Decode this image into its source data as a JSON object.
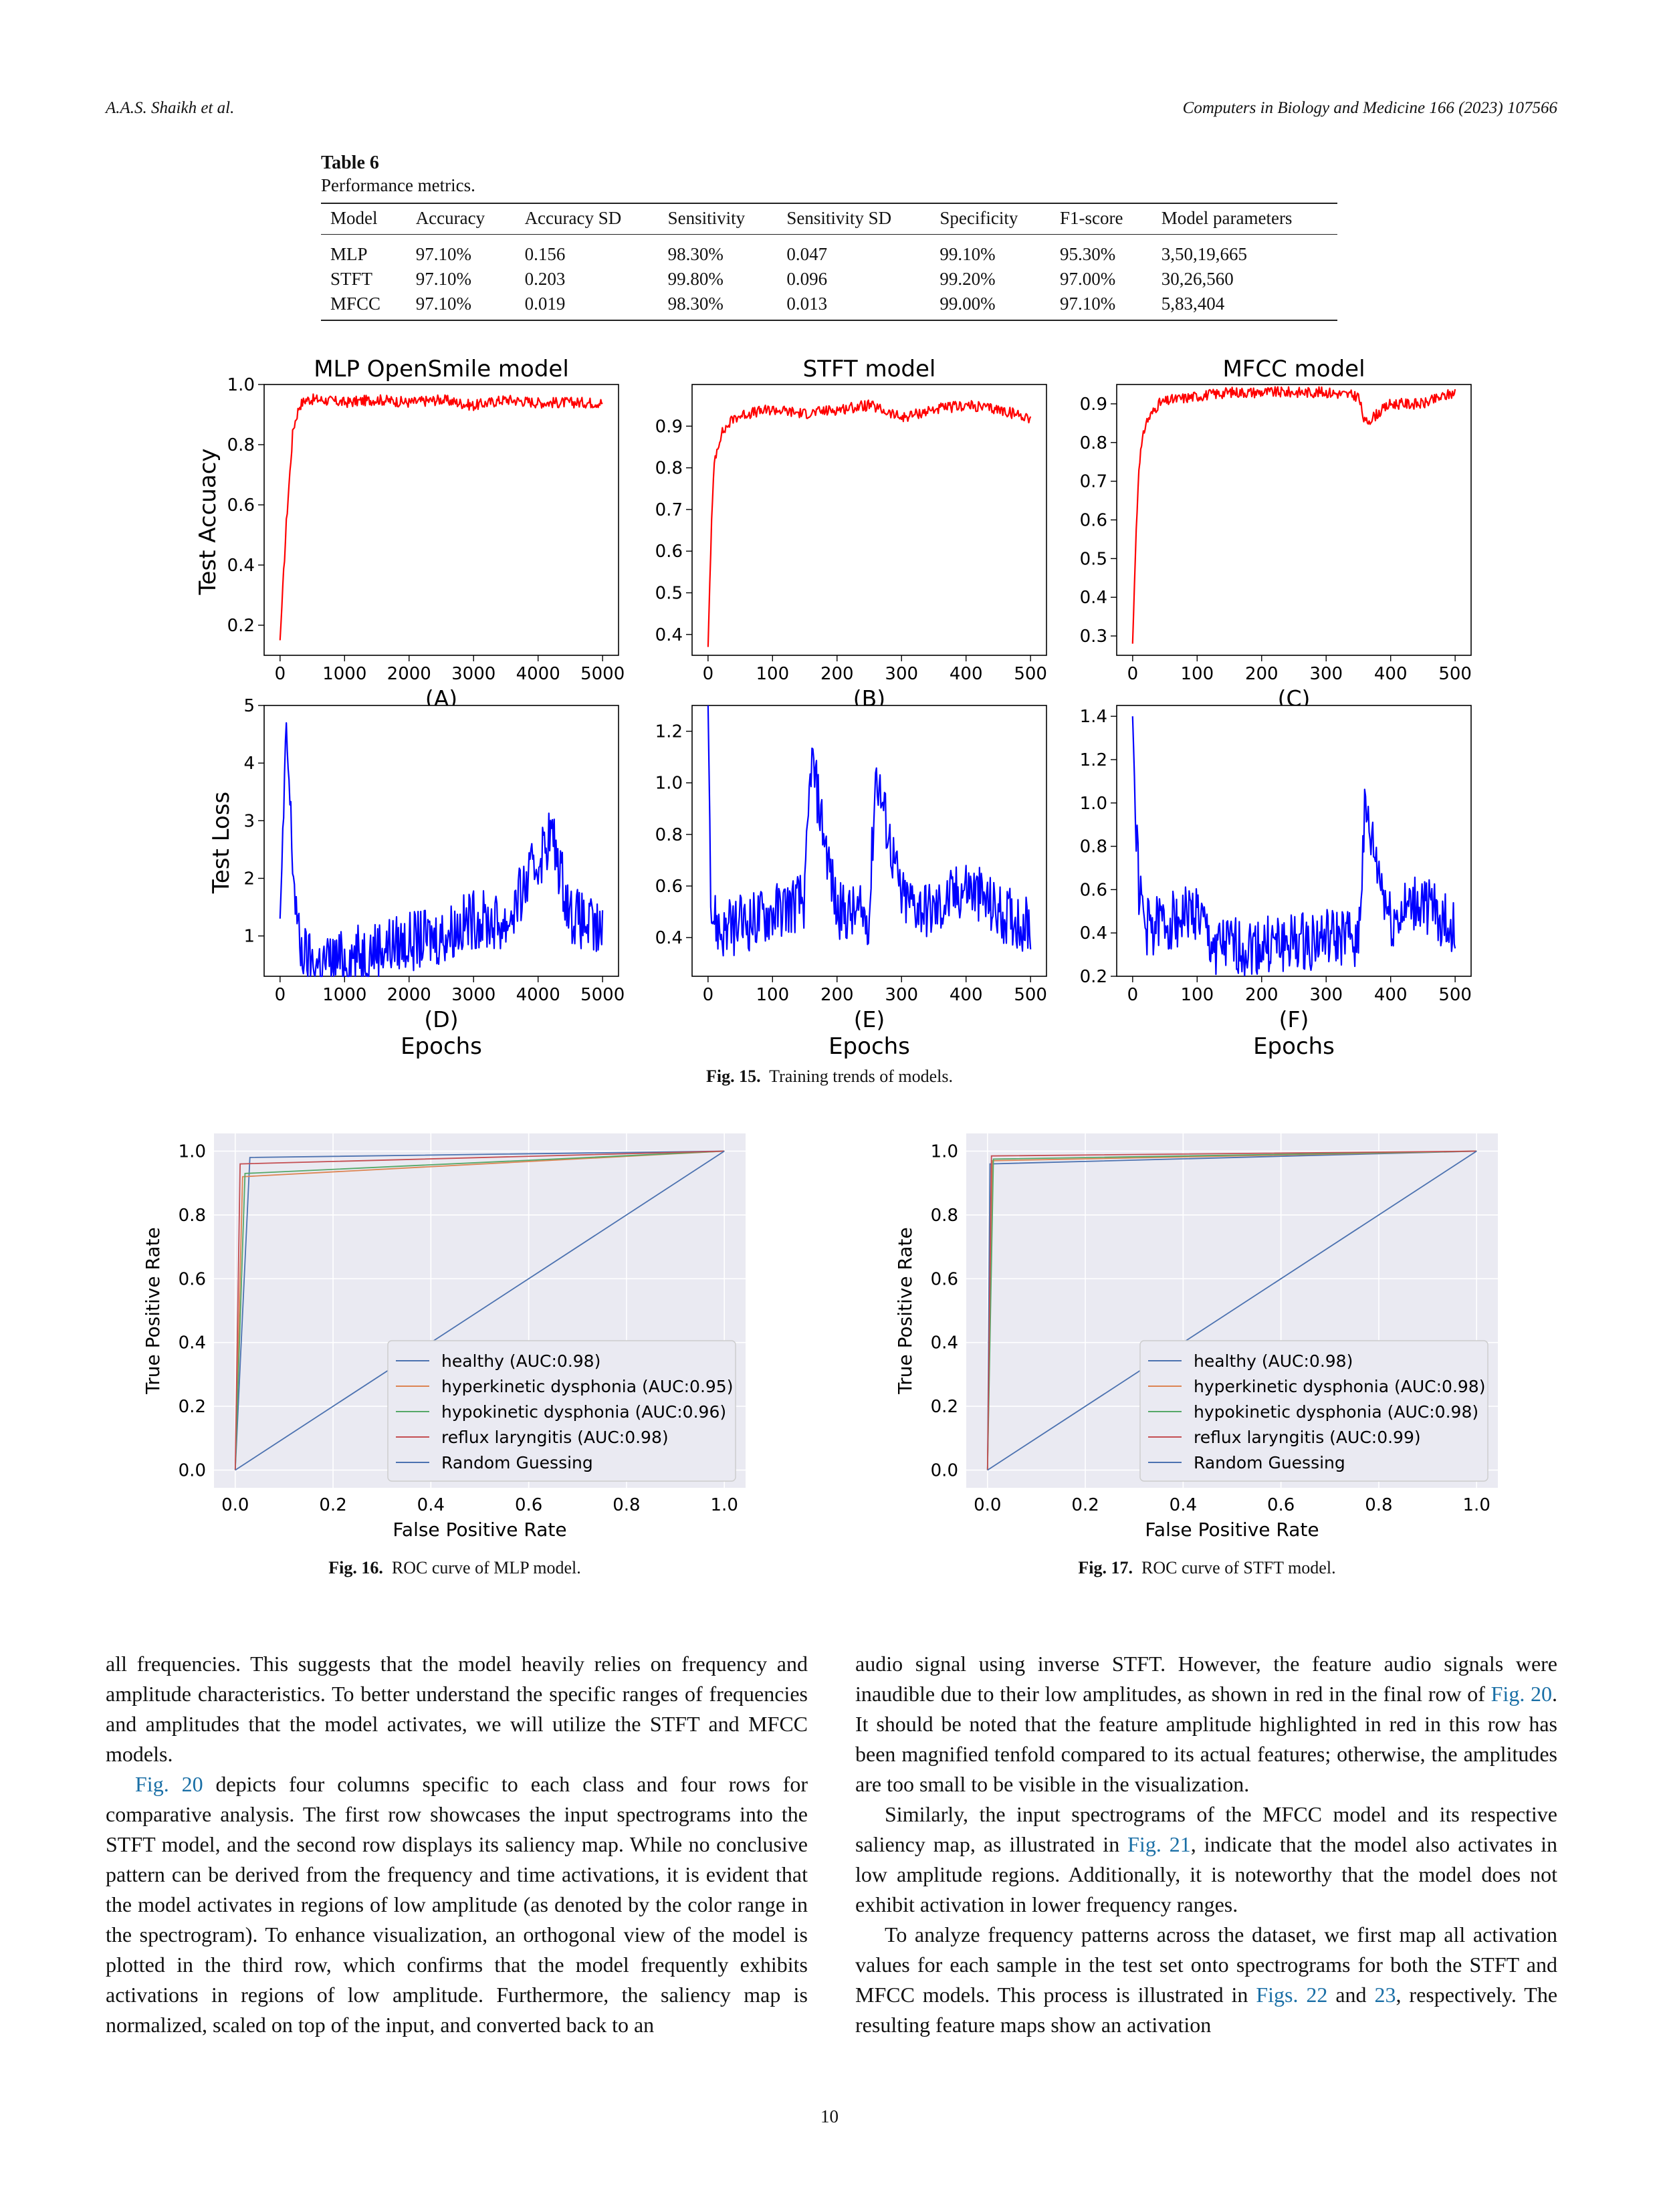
{
  "header": {
    "authors": "A.A.S. Shaikh et al.",
    "journal": "Computers in Biology and Medicine 166 (2023) 107566"
  },
  "table6": {
    "label": "Table 6",
    "caption": "Performance metrics.",
    "columns": [
      "Model",
      "Accuracy",
      "Accuracy SD",
      "Sensitivity",
      "Sensitivity SD",
      "Specificity",
      "F1-score",
      "Model parameters"
    ],
    "rows": [
      [
        "MLP",
        "97.10%",
        "0.156",
        "98.30%",
        "0.047",
        "99.10%",
        "95.30%",
        "3,50,19,665"
      ],
      [
        "STFT",
        "97.10%",
        "0.203",
        "99.80%",
        "0.096",
        "99.20%",
        "97.00%",
        "30,26,560"
      ],
      [
        "MFCC",
        "97.10%",
        "0.019",
        "98.30%",
        "0.013",
        "99.00%",
        "97.10%",
        "5,83,404"
      ]
    ]
  },
  "fig15": {
    "caption_label": "Fig. 15.",
    "caption_text": "Training trends of models.",
    "titles": [
      "MLP OpenSmile model",
      "STFT model",
      "MFCC model"
    ],
    "ylabel_top": "Test Accuacy",
    "ylabel_bottom": "Test Loss",
    "xlabel": "Epochs",
    "panel_letters": [
      "(A)",
      "(B)",
      "(C)",
      "(D)",
      "(E)",
      "(F)"
    ]
  },
  "fig16": {
    "caption_label": "Fig. 16.",
    "caption_text": "ROC curve of MLP model."
  },
  "fig17": {
    "caption_label": "Fig. 17.",
    "caption_text": "ROC curve of STFT model."
  },
  "chart_data": [
    {
      "type": "line",
      "panel": "(A)",
      "title": "MLP OpenSmile model",
      "ylabel": "Test Accuacy",
      "xlim": [
        0,
        5000
      ],
      "ylim": [
        0.1,
        1.0
      ],
      "xticks": [
        0,
        1000,
        2000,
        3000,
        4000,
        5000
      ],
      "yticks": [
        0.2,
        0.4,
        0.6,
        0.8,
        1.0
      ],
      "color": "#ff0000",
      "x": [
        0,
        50,
        100,
        200,
        300,
        400,
        600,
        1000,
        1500,
        2000,
        2500,
        3000,
        3500,
        4000,
        4500,
        5000
      ],
      "y": [
        0.15,
        0.35,
        0.55,
        0.85,
        0.93,
        0.95,
        0.95,
        0.94,
        0.95,
        0.94,
        0.95,
        0.93,
        0.95,
        0.94,
        0.94,
        0.94
      ]
    },
    {
      "type": "line",
      "panel": "(B)",
      "title": "STFT model",
      "xlim": [
        0,
        500
      ],
      "ylim": [
        0.35,
        1.0
      ],
      "xticks": [
        0,
        100,
        200,
        300,
        400,
        500
      ],
      "yticks": [
        0.4,
        0.5,
        0.6,
        0.7,
        0.8,
        0.9
      ],
      "color": "#ff0000",
      "x": [
        0,
        5,
        10,
        20,
        40,
        60,
        100,
        150,
        200,
        250,
        300,
        350,
        400,
        450,
        500
      ],
      "y": [
        0.37,
        0.65,
        0.82,
        0.88,
        0.92,
        0.93,
        0.94,
        0.93,
        0.94,
        0.95,
        0.92,
        0.94,
        0.95,
        0.94,
        0.92
      ]
    },
    {
      "type": "line",
      "panel": "(C)",
      "title": "MFCC model",
      "xlim": [
        0,
        500
      ],
      "ylim": [
        0.25,
        0.95
      ],
      "xticks": [
        0,
        100,
        200,
        300,
        400,
        500
      ],
      "yticks": [
        0.3,
        0.4,
        0.5,
        0.6,
        0.7,
        0.8,
        0.9
      ],
      "color": "#ff0000",
      "x": [
        0,
        5,
        10,
        20,
        40,
        60,
        100,
        150,
        200,
        250,
        300,
        350,
        360,
        400,
        450,
        500
      ],
      "y": [
        0.28,
        0.55,
        0.75,
        0.85,
        0.9,
        0.91,
        0.92,
        0.93,
        0.93,
        0.93,
        0.93,
        0.92,
        0.85,
        0.9,
        0.9,
        0.93
      ]
    },
    {
      "type": "line",
      "panel": "(D)",
      "ylabel": "Test Loss",
      "xlabel": "Epochs",
      "xlim": [
        0,
        5000
      ],
      "ylim": [
        0.3,
        5.0
      ],
      "xticks": [
        0,
        1000,
        2000,
        3000,
        4000,
        5000
      ],
      "yticks": [
        1,
        2,
        3,
        4,
        5
      ],
      "color": "#0000ff",
      "x": [
        0,
        100,
        200,
        300,
        500,
        1000,
        1500,
        2000,
        2500,
        3000,
        3500,
        4000,
        4200,
        4500,
        5000
      ],
      "y": [
        1.3,
        4.5,
        2.2,
        0.8,
        0.5,
        0.6,
        0.8,
        0.9,
        1.0,
        1.3,
        1.2,
        2.3,
        2.8,
        1.4,
        1.0
      ]
    },
    {
      "type": "line",
      "panel": "(E)",
      "xlabel": "Epochs",
      "xlim": [
        0,
        500
      ],
      "ylim": [
        0.25,
        1.3
      ],
      "xticks": [
        0,
        100,
        200,
        300,
        400,
        500
      ],
      "yticks": [
        0.4,
        0.6,
        0.8,
        1.0,
        1.2
      ],
      "color": "#0000ff",
      "x": [
        0,
        5,
        20,
        50,
        100,
        150,
        160,
        200,
        250,
        260,
        300,
        350,
        400,
        450,
        500
      ],
      "y": [
        1.3,
        0.5,
        0.42,
        0.45,
        0.5,
        0.55,
        1.1,
        0.5,
        0.48,
        1.05,
        0.55,
        0.5,
        0.6,
        0.5,
        0.45
      ]
    },
    {
      "type": "line",
      "panel": "(F)",
      "xlabel": "Epochs",
      "xlim": [
        0,
        500
      ],
      "ylim": [
        0.2,
        1.45
      ],
      "xticks": [
        0,
        100,
        200,
        300,
        400,
        500
      ],
      "yticks": [
        0.2,
        0.4,
        0.6,
        0.8,
        1.0,
        1.2,
        1.4
      ],
      "color": "#0000ff",
      "x": [
        0,
        5,
        10,
        20,
        50,
        100,
        120,
        150,
        200,
        250,
        300,
        350,
        360,
        400,
        450,
        500
      ],
      "y": [
        1.4,
        0.9,
        0.6,
        0.42,
        0.45,
        0.5,
        0.35,
        0.33,
        0.34,
        0.35,
        0.37,
        0.38,
        0.95,
        0.45,
        0.55,
        0.4
      ]
    },
    {
      "type": "line",
      "chart": "ROC curve of MLP model",
      "xlabel": "False Positive Rate",
      "ylabel": "True Positive Rate",
      "xlim": [
        0,
        1
      ],
      "ylim": [
        0,
        1
      ],
      "xticks": [
        0.0,
        0.2,
        0.4,
        0.6,
        0.8,
        1.0
      ],
      "yticks": [
        0.0,
        0.2,
        0.4,
        0.6,
        0.8,
        1.0
      ],
      "legend": "lower right",
      "series": [
        {
          "name": "healthy (AUC:0.98)",
          "color": "#4c72b0",
          "x": [
            0,
            0.03,
            1.0
          ],
          "y": [
            0,
            0.98,
            1.0
          ]
        },
        {
          "name": "hyperkinetic dysphonia (AUC:0.95)",
          "color": "#dd8452",
          "x": [
            0,
            0.015,
            1.0
          ],
          "y": [
            0,
            0.92,
            1.0
          ]
        },
        {
          "name": "hypokinetic dysphonia (AUC:0.96)",
          "color": "#55a868",
          "x": [
            0,
            0.02,
            1.0
          ],
          "y": [
            0,
            0.93,
            1.0
          ]
        },
        {
          "name": "reflux laryngitis (AUC:0.98)",
          "color": "#c44e52",
          "x": [
            0,
            0.01,
            1.0
          ],
          "y": [
            0,
            0.96,
            1.0
          ]
        },
        {
          "name": "Random Guessing",
          "color": "#4c72b0",
          "x": [
            0,
            1
          ],
          "y": [
            0,
            1
          ]
        }
      ]
    },
    {
      "type": "line",
      "chart": "ROC curve of STFT model",
      "xlabel": "False Positive Rate",
      "ylabel": "True Positive Rate",
      "xlim": [
        0,
        1
      ],
      "ylim": [
        0,
        1
      ],
      "xticks": [
        0.0,
        0.2,
        0.4,
        0.6,
        0.8,
        1.0
      ],
      "yticks": [
        0.0,
        0.2,
        0.4,
        0.6,
        0.8,
        1.0
      ],
      "legend": "lower right",
      "series": [
        {
          "name": "healthy (AUC:0.98)",
          "color": "#4c72b0",
          "x": [
            0,
            0.005,
            1.0
          ],
          "y": [
            0,
            0.96,
            1.0
          ]
        },
        {
          "name": "hyperkinetic dysphonia (AUC:0.98)",
          "color": "#dd8452",
          "x": [
            0,
            0.01,
            1.0
          ],
          "y": [
            0,
            0.97,
            1.0
          ]
        },
        {
          "name": "hypokinetic dysphonia (AUC:0.98)",
          "color": "#55a868",
          "x": [
            0,
            0.012,
            1.0
          ],
          "y": [
            0,
            0.975,
            1.0
          ]
        },
        {
          "name": "reflux laryngitis (AUC:0.99)",
          "color": "#c44e52",
          "x": [
            0,
            0.008,
            1.0
          ],
          "y": [
            0,
            0.985,
            1.0
          ]
        },
        {
          "name": "Random Guessing",
          "color": "#4c72b0",
          "x": [
            0,
            1
          ],
          "y": [
            0,
            1
          ]
        }
      ]
    }
  ],
  "body": {
    "left": [
      "all frequencies. This suggests that the model heavily relies on frequency and amplitude characteristics. To better understand the specific ranges of frequencies and amplitudes that the model activates, we will utilize the STFT and MFCC models.",
      " depicts four columns specific to each class and four rows for comparative analysis. The first row showcases the input spectrograms into the STFT model, and the second row displays its saliency map. While no conclusive pattern can be derived from the frequency and time activations, it is evident that the model activates in regions of low amplitude (as denoted by the color range in the spectrogram). To enhance visualization, an orthogonal view of the model is plotted in the third row, which confirms that the model frequently exhibits activations in regions of low amplitude. Furthermore, the saliency map is normalized, scaled on top of the input, and converted back to an"
    ],
    "left_ref": "Fig. 20",
    "right": [
      "audio signal using inverse STFT. However, the feature audio signals were inaudible due to their low amplitudes, as shown in red in the final row of ",
      ". It should be noted that the feature amplitude highlighted in red in this row has been magnified tenfold compared to its actual features; otherwise, the amplitudes are too small to be visible in the visualization.",
      "Similarly, the input spectrograms of the MFCC model and its respective saliency map, as illustrated in ",
      ", indicate that the model also activates in low amplitude regions. Additionally, it is noteworthy that the model does not exhibit activation in lower frequency ranges.",
      "To analyze frequency patterns across the dataset, we first map all activation values for each sample in the test set onto spectrograms for both the STFT and MFCC models. This process is illustrated in ",
      " and ",
      ", respectively. The resulting feature maps show an activation"
    ],
    "right_refs": [
      "Fig. 20",
      "Fig. 21",
      "Figs. 22",
      "23"
    ]
  },
  "page_number": "10"
}
